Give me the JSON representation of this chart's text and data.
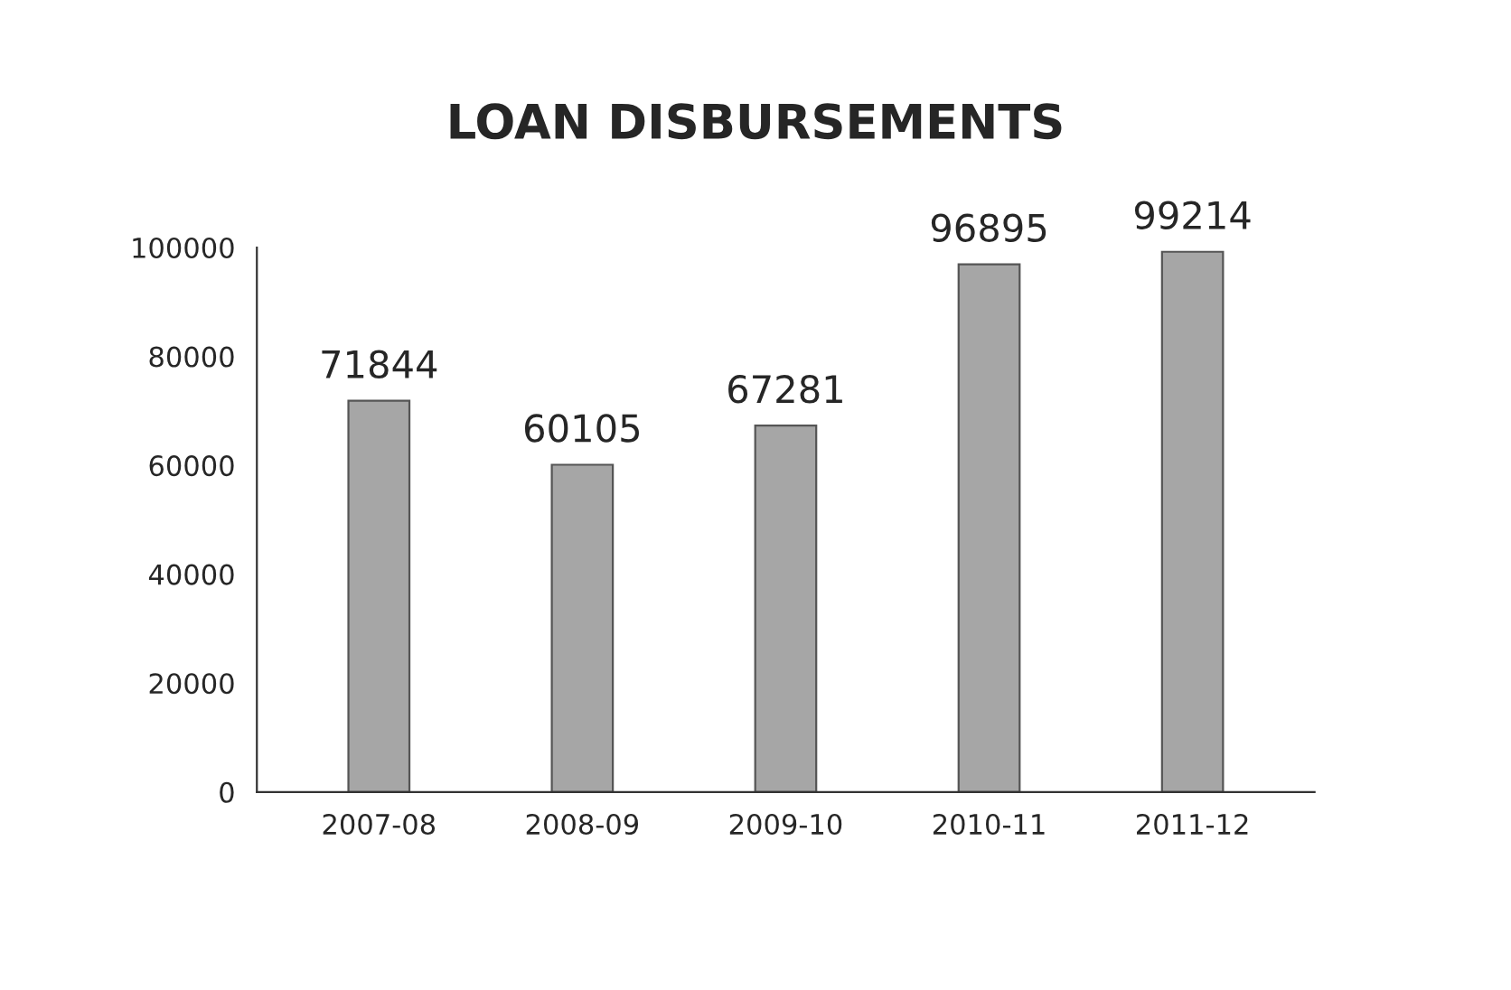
{
  "chart_data": {
    "type": "bar",
    "title": "LOAN DISBURSEMENTS",
    "categories": [
      "2007-08",
      "2008-09",
      "2009-10",
      "2010-11",
      "2011-12"
    ],
    "values": [
      71844,
      60105,
      67281,
      96895,
      99214
    ],
    "color": "#a6a6a6",
    "ylim": [
      0,
      100000
    ],
    "yticks": [
      0,
      20000,
      40000,
      60000,
      80000,
      100000
    ],
    "data_labels": true,
    "grid": false,
    "legend": false
  }
}
